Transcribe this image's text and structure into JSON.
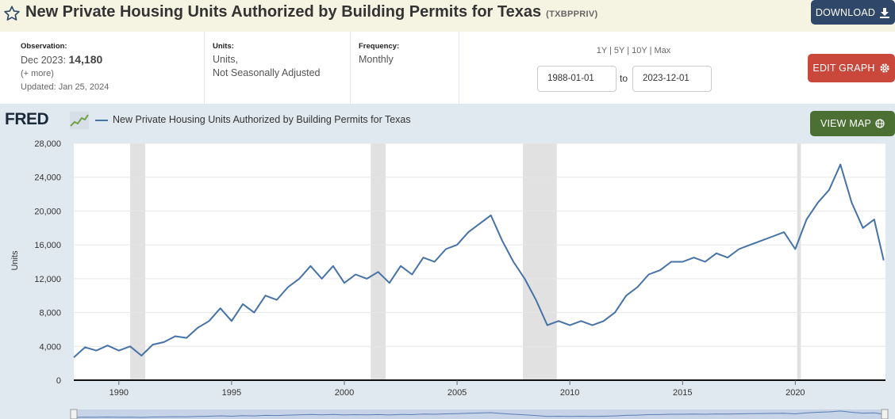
{
  "header": {
    "title": "New Private Housing Units Authorized by Building Permits for Texas",
    "series_id": "(TXBPPRIV)",
    "download_label": "DOWNLOAD",
    "edit_graph_label": "EDIT GRAPH",
    "view_map_label": "VIEW MAP"
  },
  "meta": {
    "observation_label": "Observation:",
    "observation_date": "Dec 2023:",
    "observation_value": "14,180",
    "more_label": "(+ more)",
    "updated": "Updated: Jan 25, 2024",
    "units_label": "Units:",
    "units_line1": "Units,",
    "units_line2": "Not Seasonally Adjusted",
    "frequency_label": "Frequency:",
    "frequency_value": "Monthly"
  },
  "range": {
    "links": "1Y | 5Y | 10Y | Max",
    "start_date": "1988-01-01",
    "to_label": "to",
    "end_date": "2023-12-01"
  },
  "colors": {
    "line": "#4572a7",
    "recession": "#e1e1e1",
    "background": "#e1e9f0",
    "title_band": "#f5f3e1"
  },
  "chart_data": {
    "type": "line",
    "brand": "FRED",
    "legend": "New Private Housing Units Authorized by Building Permits for Texas",
    "ylabel": "Units",
    "xlabel": "",
    "ylim": [
      0,
      28000
    ],
    "xlim": [
      1988.0,
      2024.0
    ],
    "y_ticks": [
      0,
      4000,
      8000,
      12000,
      16000,
      20000,
      24000,
      28000
    ],
    "y_tick_labels": [
      "0",
      "4,000",
      "8,000",
      "12,000",
      "16,000",
      "20,000",
      "24,000",
      "28,000"
    ],
    "x_ticks": [
      1990,
      1995,
      2000,
      2005,
      2010,
      2015,
      2020
    ],
    "x_tick_labels": [
      "1990",
      "1995",
      "2000",
      "2005",
      "2010",
      "2015",
      "2020"
    ],
    "recessions": [
      [
        1990.5,
        1991.17
      ],
      [
        2001.17,
        2001.83
      ],
      [
        2007.92,
        2009.42
      ],
      [
        2020.08,
        2020.25
      ]
    ],
    "series": [
      {
        "name": "TXBPPRIV",
        "x": [
          1988.0,
          1988.5,
          1989.0,
          1989.5,
          1990.0,
          1990.5,
          1991.0,
          1991.5,
          1992.0,
          1992.5,
          1993.0,
          1993.5,
          1994.0,
          1994.5,
          1995.0,
          1995.5,
          1996.0,
          1996.5,
          1997.0,
          1997.5,
          1998.0,
          1998.5,
          1999.0,
          1999.5,
          2000.0,
          2000.5,
          2001.0,
          2001.5,
          2002.0,
          2002.5,
          2003.0,
          2003.5,
          2004.0,
          2004.5,
          2005.0,
          2005.5,
          2006.0,
          2006.5,
          2007.0,
          2007.5,
          2008.0,
          2008.5,
          2009.0,
          2009.5,
          2010.0,
          2010.5,
          2011.0,
          2011.5,
          2012.0,
          2012.5,
          2013.0,
          2013.5,
          2014.0,
          2014.5,
          2015.0,
          2015.5,
          2016.0,
          2016.5,
          2017.0,
          2017.5,
          2018.0,
          2018.5,
          2019.0,
          2019.5,
          2020.0,
          2020.5,
          2021.0,
          2021.5,
          2022.0,
          2022.5,
          2023.0,
          2023.5,
          2023.92
        ],
        "values": [
          2700,
          3900,
          3500,
          4100,
          3500,
          4000,
          2900,
          4200,
          4500,
          5200,
          5000,
          6200,
          7000,
          8500,
          7000,
          9000,
          8000,
          10000,
          9500,
          11000,
          12000,
          13500,
          12000,
          13500,
          11500,
          12500,
          12000,
          12800,
          11500,
          13500,
          12500,
          14500,
          14000,
          15500,
          16000,
          17500,
          18500,
          19500,
          16500,
          14000,
          12000,
          9500,
          6500,
          7000,
          6500,
          7000,
          6500,
          7000,
          8000,
          10000,
          11000,
          12500,
          13000,
          14000,
          14000,
          14500,
          14000,
          15000,
          14500,
          15500,
          16000,
          16500,
          17000,
          17500,
          15500,
          19000,
          21000,
          22500,
          25500,
          21000,
          18000,
          19000,
          14180
        ]
      }
    ]
  }
}
